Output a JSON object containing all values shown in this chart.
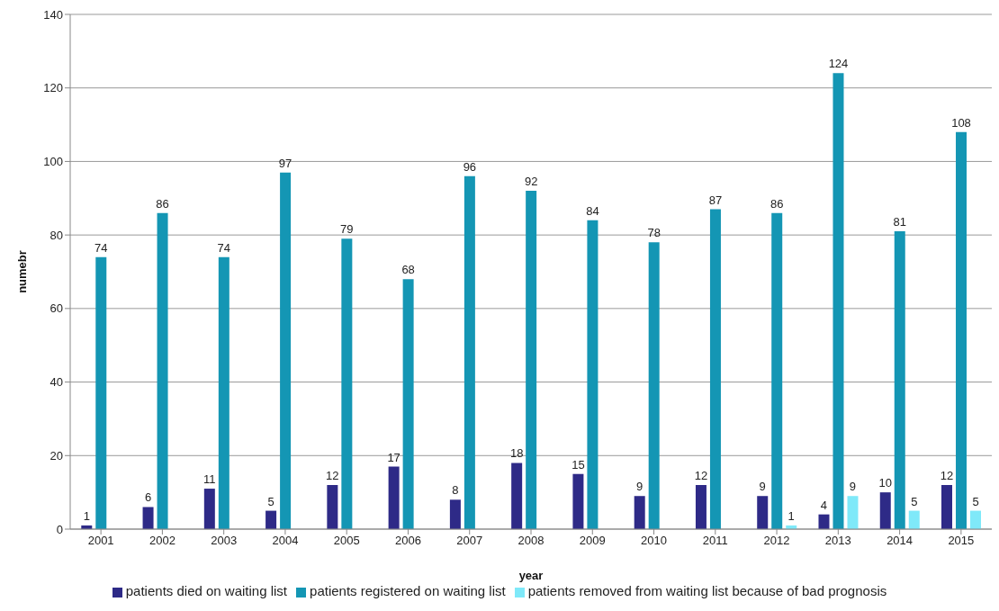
{
  "chart_data": {
    "type": "bar",
    "xlabel": "year",
    "ylabel": "numebr",
    "categories": [
      "2001",
      "2002",
      "2003",
      "2004",
      "2005",
      "2006",
      "2007",
      "2008",
      "2009",
      "2010",
      "2011",
      "2012",
      "2013",
      "2014",
      "2015"
    ],
    "series": [
      {
        "name": "patients died on waiting list",
        "color": "#2e2a87",
        "values": [
          1,
          6,
          11,
          5,
          12,
          17,
          8,
          18,
          15,
          9,
          12,
          9,
          4,
          10,
          12
        ]
      },
      {
        "name": "patients registered on waiting list",
        "color": "#1496b4",
        "values": [
          74,
          86,
          74,
          97,
          79,
          68,
          96,
          92,
          84,
          78,
          87,
          86,
          124,
          81,
          108
        ]
      },
      {
        "name": "patients removed from waiting list because of bad prognosis",
        "color": "#7fe9f9",
        "values": [
          null,
          null,
          null,
          null,
          null,
          null,
          null,
          null,
          null,
          null,
          null,
          1,
          9,
          5,
          5
        ]
      }
    ],
    "ylim": [
      0,
      140
    ],
    "yticks": [
      0,
      20,
      40,
      60,
      80,
      100,
      120,
      140
    ],
    "grid": "y",
    "legend": "bottom",
    "data_labels": true
  }
}
